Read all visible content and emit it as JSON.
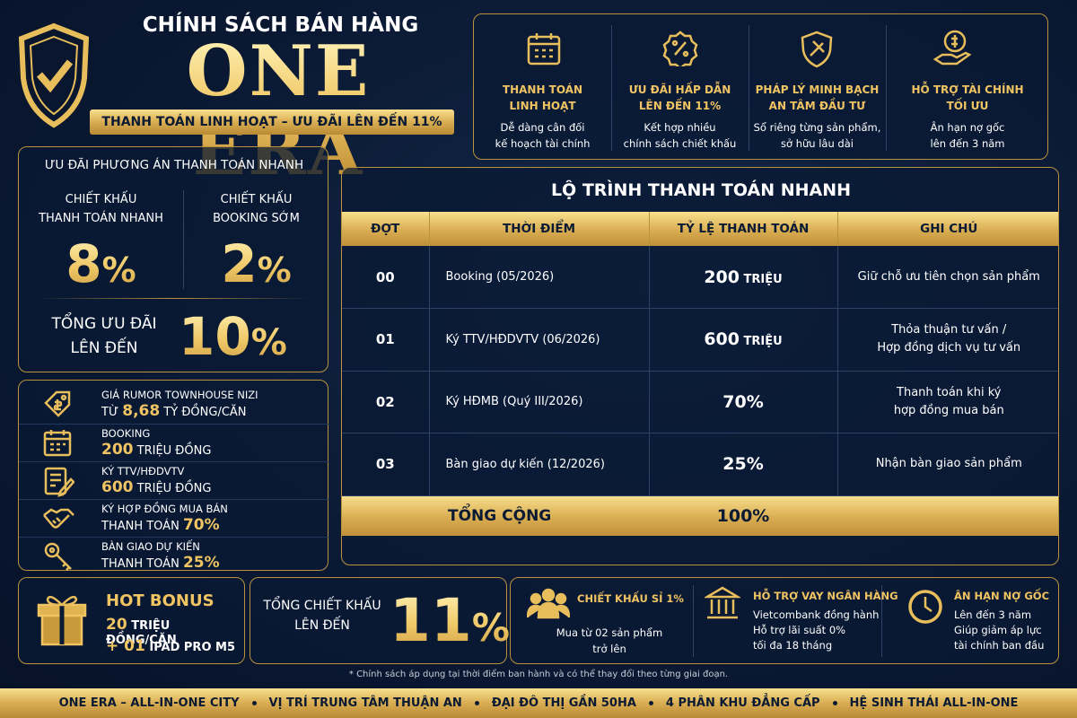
{
  "header": {
    "subtitle": "CHÍNH SÁCH BÁN HÀNG",
    "title": "ONE ERA",
    "tagline": "THANH TOÁN LINH HOẠT – ƯU ĐÃI LÊN ĐẾN 11%"
  },
  "features": [
    {
      "title_lines": [
        "THANH TOÁN",
        "LINH HOẠT"
      ],
      "desc_lines": [
        "Dễ dàng cân đối",
        "kế hoạch tài chính"
      ]
    },
    {
      "title_lines": [
        "ƯU ĐÃI HẤP DẪN",
        "LÊN ĐẾN 11%"
      ],
      "desc_lines": [
        "Kết hợp nhiều",
        "chính sách chiết khấu"
      ]
    },
    {
      "title_lines": [
        "PHÁP LÝ MINH BẠCH",
        "AN TÂM ĐẦU TƯ"
      ],
      "desc_lines": [
        "Sổ riêng từng sản phẩm,",
        "sở hữu lâu dài"
      ]
    },
    {
      "title_lines": [
        "HỖ TRỢ TÀI CHÍNH",
        "TỐI ƯU"
      ],
      "desc_lines": [
        "Ân hạn nợ gốc",
        "lên đến 3 năm"
      ]
    }
  ],
  "quick_discount": {
    "heading": "ƯU ĐÃI PHƯƠNG ÁN THANH TOÁN NHANH",
    "items": [
      {
        "label_lines": [
          "CHIẾT KHẤU",
          "THANH TOÁN NHANH"
        ],
        "value": "8",
        "unit": "%"
      },
      {
        "label_lines": [
          "CHIẾT KHẤU",
          "BOOKING SỚM"
        ],
        "value": "2",
        "unit": "%"
      }
    ],
    "total": {
      "label_lines": [
        "TỔNG ƯU ĐÃI",
        "LÊN ĐẾN"
      ],
      "value": "10",
      "unit": "%"
    }
  },
  "summary": [
    {
      "label": "GIÁ RUMOR TOWNHOUSE NIZI",
      "prefix": "TỪ",
      "highlight": "8,68",
      "suffix": "TỶ ĐỒNG/CĂN"
    },
    {
      "label": "BOOKING",
      "highlight": "200",
      "suffix": "TRIỆU ĐỒNG"
    },
    {
      "label": "KÝ TTV/HĐDVTV",
      "highlight": "600",
      "suffix": "TRIỆU ĐỒNG"
    },
    {
      "label": "KÝ HỢP ĐỒNG MUA BÁN",
      "prefix": "THANH TOÁN",
      "highlight": "70%"
    },
    {
      "label": "BÀN GIAO DỰ KIẾN",
      "prefix": "THANH TOÁN",
      "highlight": "25%"
    }
  ],
  "table": {
    "title": "LỘ TRÌNH THANH TOÁN NHANH",
    "header": [
      "ĐỢT",
      "THỜI ĐIỂM",
      "TỶ LỆ THANH TOÁN",
      "GHI CHÚ"
    ],
    "rows": [
      {
        "phase": "00",
        "time": "Booking (05/2026)",
        "rate": "200",
        "unit": "TRIỆU",
        "note_lines": [
          "Giữ chỗ ưu tiên chọn sản phẩm"
        ]
      },
      {
        "phase": "01",
        "time": "Ký TTV/HĐDVTV (06/2026)",
        "rate": "600",
        "unit": "TRIỆU",
        "note_lines": [
          "Thỏa thuận tư vấn /",
          "Hợp đồng dịch vụ tư vấn"
        ]
      },
      {
        "phase": "02",
        "time": "Ký HĐMB (Quý III/2026)",
        "rate": "70%",
        "note_lines": [
          "Thanh toán khi ký",
          "hợp đồng mua bán"
        ]
      },
      {
        "phase": "03",
        "time": "Bàn giao dự kiến (12/2026)",
        "rate": "25%",
        "note_lines": [
          "Nhận bàn giao sản phẩm"
        ]
      }
    ],
    "total": {
      "label": "TỔNG CỘNG",
      "value": "100%"
    }
  },
  "hot_bonus": {
    "title": "HOT BONUS",
    "line1": {
      "highlight": "20",
      "text": "TRIỆU ĐỒNG/CĂN"
    },
    "line2": {
      "highlight": "+ 01",
      "text": "IPAD PRO M5"
    }
  },
  "total_discount": {
    "label_lines": [
      "TỔNG CHIẾT KHẤU",
      "LÊN ĐẾN"
    ],
    "value": "11",
    "unit": "%"
  },
  "perks": [
    {
      "title": "CHIẾT KHẤU SỈ 1%",
      "lines": [
        "Mua từ 02 sản phẩm",
        "trở lên"
      ]
    },
    {
      "title": "HỖ TRỢ VAY NGÂN HÀNG",
      "lines": [
        "Vietcombank đồng hành",
        "Hỗ trợ lãi suất 0%",
        "tối đa 18 tháng"
      ]
    },
    {
      "title": "ÂN HẠN NỢ GỐC",
      "lines": [
        "Lên đến 3 năm",
        "Giúp giảm áp lực",
        "tài chính ban đầu"
      ]
    }
  ],
  "footnote": "* Chính sách áp dụng tại thời điểm ban hành và có thể thay đổi theo từng giai đoạn.",
  "footer": [
    "ONE ERA – ALL-IN-ONE CITY",
    "VỊ TRÍ TRUNG TÂM THUẬN AN",
    "ĐẠI ĐÔ THỊ GẦN 50HA",
    "4 PHÂN KHU ĐẲNG CẤP",
    "HỆ SINH THÁI ALL-IN-ONE"
  ]
}
